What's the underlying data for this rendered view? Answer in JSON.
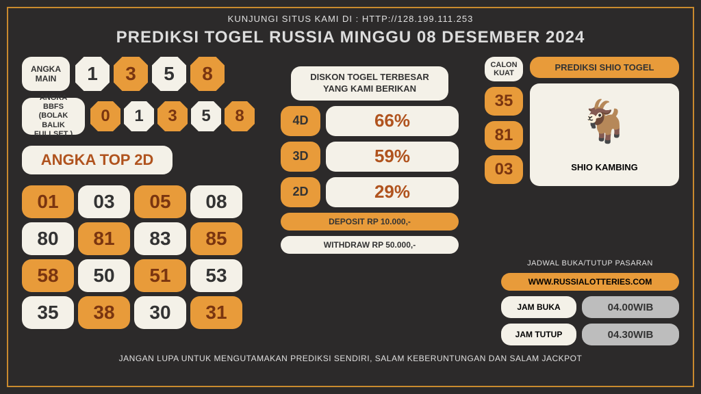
{
  "topbar": "KUNJUNGI SITUS KAMI DI : HTTP://128.199.111.253",
  "title": "PREDIKSI TOGEL RUSSIA MINGGU 08 DESEMBER 2024",
  "footer": "JANGAN LUPA UNTUK MENGUTAMAKAN PREDIKSI SENDIRI, SALAM KEBERUNTUNGAN DAN SALAM JACKPOT",
  "colors": {
    "bg": "#2c2a2a",
    "accent": "#e89b3a",
    "cream": "#f4f1e8",
    "dark_text": "#7a3510",
    "border": "#c98a2e"
  },
  "angka_main": {
    "label": "ANGKA\nMAIN",
    "values": [
      "1",
      "3",
      "5",
      "8"
    ],
    "orange_idx": [
      1,
      3
    ]
  },
  "angka_bbfs": {
    "label": "ANGKA BBFS\n(BOLAK BALIK\nFULLSET )",
    "values": [
      "0",
      "1",
      "3",
      "5",
      "8"
    ],
    "orange_idx": [
      0,
      2,
      4
    ]
  },
  "top2d": {
    "label": "ANGKA TOP 2D",
    "cells": [
      {
        "v": "01",
        "c": "orange"
      },
      {
        "v": "03",
        "c": "cream"
      },
      {
        "v": "05",
        "c": "orange"
      },
      {
        "v": "08",
        "c": "cream"
      },
      {
        "v": "80",
        "c": "cream"
      },
      {
        "v": "81",
        "c": "orange"
      },
      {
        "v": "83",
        "c": "cream"
      },
      {
        "v": "85",
        "c": "orange"
      },
      {
        "v": "58",
        "c": "orange"
      },
      {
        "v": "50",
        "c": "cream"
      },
      {
        "v": "51",
        "c": "orange"
      },
      {
        "v": "53",
        "c": "cream"
      },
      {
        "v": "35",
        "c": "cream"
      },
      {
        "v": "38",
        "c": "orange"
      },
      {
        "v": "30",
        "c": "cream"
      },
      {
        "v": "31",
        "c": "orange"
      }
    ]
  },
  "diskon": {
    "label": "DISKON TOGEL TERBESAR\nYANG KAMI BERIKAN",
    "rows": [
      {
        "k": "4D",
        "v": "66%"
      },
      {
        "k": "3D",
        "v": "59%"
      },
      {
        "k": "2D",
        "v": "29%"
      }
    ],
    "deposit": "DEPOSIT RP 10.000,-",
    "withdraw": "WITHDRAW RP 50.000,-"
  },
  "calon": {
    "label": "CALON\nKUAT",
    "values": [
      "35",
      "81",
      "03"
    ]
  },
  "shio": {
    "title": "PREDIKSI SHIO TOGEL",
    "name": "SHIO KAMBING",
    "emoji": "🐐"
  },
  "schedule": {
    "label": "JADWAL BUKA/TUTUP PASARAN",
    "site": "WWW.RUSSIALOTTERIES.COM",
    "open_k": "JAM BUKA",
    "open_v": "04.00WIB",
    "close_k": "JAM TUTUP",
    "close_v": "04.30WIB"
  }
}
